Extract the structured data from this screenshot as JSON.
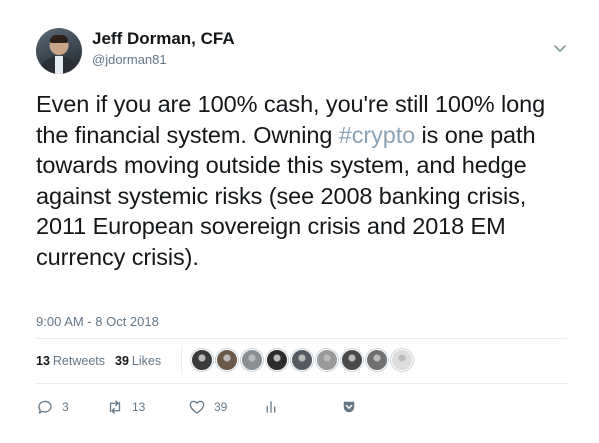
{
  "author": {
    "name": "Jeff Dorman, CFA",
    "handle": "@jdorman81"
  },
  "tweet": {
    "text_before": "Even if you are 100% cash, you're still 100% long the financial system. Owning ",
    "hashtag": "#crypto",
    "text_after": " is one path towards moving outside this system, and hedge against systemic risks (see 2008 banking crisis, 2011 European sovereign crisis and 2018 EM currency crisis).",
    "timestamp": "9:00 AM - 8 Oct 2018",
    "hashtag_color": "#8ea3b3"
  },
  "stats": {
    "retweets_count": "13",
    "retweets_label": "Retweets",
    "likes_count": "39",
    "likes_label": "Likes"
  },
  "likers": [
    {
      "icon": "liker-avatar-1",
      "color": "#3a3a3a"
    },
    {
      "icon": "liker-avatar-2",
      "color": "#6b5a4a"
    },
    {
      "icon": "liker-avatar-3",
      "color": "#8a8f94"
    },
    {
      "icon": "liker-avatar-4",
      "color": "#2c2c2c"
    },
    {
      "icon": "liker-avatar-5",
      "color": "#555b60"
    },
    {
      "icon": "liker-avatar-6",
      "color": "#9a9a9a"
    },
    {
      "icon": "liker-avatar-7",
      "color": "#4a4a4a"
    },
    {
      "icon": "liker-avatar-8",
      "color": "#707070"
    },
    {
      "icon": "liker-avatar-9",
      "color": "#dcdcdc"
    }
  ],
  "actions": {
    "reply_count": "3",
    "retweet_count": "13",
    "like_count": "39"
  },
  "icons": {
    "caret": "chevron-down-icon",
    "reply": "reply-icon",
    "retweet": "retweet-icon",
    "like": "heart-icon",
    "analytics": "analytics-icon",
    "share": "share-icon"
  }
}
